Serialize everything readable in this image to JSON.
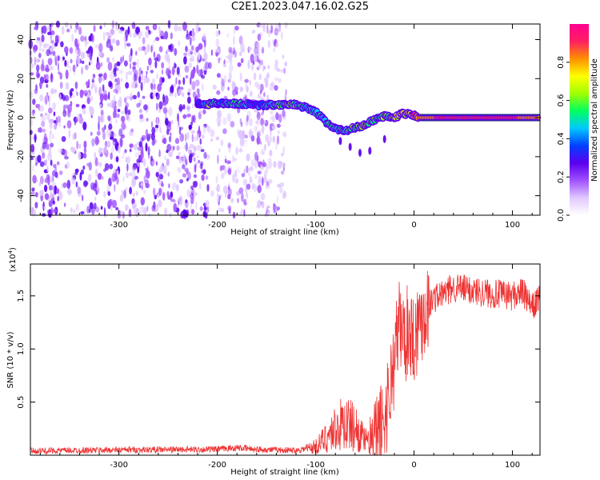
{
  "title": "C2E1.2023.047.16.02.G25",
  "chart_data": [
    {
      "type": "heatmap",
      "xlabel": "Height of straight line (km)",
      "ylabel": "Frequency (Hz)",
      "xlim": [
        -390,
        128
      ],
      "ylim": [
        -50,
        48
      ],
      "xticks": [
        -300,
        -200,
        -100,
        0,
        100
      ],
      "yticks": [
        -40,
        -20,
        0,
        20,
        40
      ],
      "colorbar": {
        "label": "Normalized spectral amplitude",
        "range": [
          0,
          1
        ],
        "ticks": [
          0.0,
          0.2,
          0.4,
          0.6,
          0.8
        ],
        "colors": [
          "#ffffff",
          "#e0c8ff",
          "#a050ff",
          "#5a00f0",
          "#0040ff",
          "#00c8ff",
          "#00ff60",
          "#a0ff00",
          "#ffff00",
          "#ff9000",
          "#ff2060",
          "#ff0090"
        ]
      },
      "noise_region_km": [
        -390,
        -130
      ],
      "ridge": [
        {
          "x": -220,
          "f": 7,
          "amp": 0.15
        },
        {
          "x": -210,
          "f": 7,
          "amp": 0.5
        },
        {
          "x": -195,
          "f": 7.5,
          "amp": 0.35
        },
        {
          "x": -175,
          "f": 7,
          "amp": 0.45
        },
        {
          "x": -160,
          "f": 6.5,
          "amp": 0.3
        },
        {
          "x": -145,
          "f": 6.5,
          "amp": 0.45
        },
        {
          "x": -128,
          "f": 7,
          "amp": 0.55
        },
        {
          "x": -115,
          "f": 6,
          "amp": 0.45
        },
        {
          "x": -100,
          "f": 3,
          "amp": 0.4
        },
        {
          "x": -88,
          "f": -3,
          "amp": 0.45
        },
        {
          "x": -78,
          "f": -6,
          "amp": 0.4
        },
        {
          "x": -70,
          "f": -7,
          "amp": 0.45
        },
        {
          "x": -60,
          "f": -5,
          "amp": 0.5
        },
        {
          "x": -52,
          "f": -4,
          "amp": 0.55
        },
        {
          "x": -44,
          "f": -2,
          "amp": 0.5
        },
        {
          "x": -36,
          "f": 0,
          "amp": 0.5
        },
        {
          "x": -28,
          "f": 1,
          "amp": 0.5
        },
        {
          "x": -20,
          "f": 0,
          "amp": 0.55
        },
        {
          "x": -12,
          "f": 2,
          "amp": 0.65
        },
        {
          "x": -4,
          "f": 2,
          "amp": 0.6
        },
        {
          "x": 5,
          "f": 0,
          "amp": 0.85
        },
        {
          "x": 40,
          "f": 0,
          "amp": 0.88
        },
        {
          "x": 80,
          "f": 0,
          "amp": 0.88
        },
        {
          "x": 128,
          "f": 0,
          "amp": 0.85
        }
      ]
    },
    {
      "type": "line",
      "xlabel": "Height of straight line (km)",
      "ylabel": "SNR (10 * v/v)",
      "scale_label": "(x10",
      "scale_exponent": "4",
      "scale_suffix": ")",
      "xlim": [
        -390,
        128
      ],
      "ylim": [
        0,
        18000
      ],
      "xticks": [
        -300,
        -200,
        -100,
        0,
        100
      ],
      "yticks": [
        5000,
        10000,
        15000
      ],
      "ytick_labels": [
        "0.5",
        "1.0",
        "1.5"
      ],
      "color": "#ee3333",
      "series": [
        {
          "x": [
            -390,
            -300,
            -200,
            -180,
            -160,
            -120,
            -100,
            -90,
            -80,
            -70,
            -60,
            -50,
            -40,
            -30,
            -25,
            -20,
            -15,
            -10,
            -5,
            0,
            5,
            10,
            20,
            30,
            40,
            60,
            80,
            100,
            110,
            120,
            128
          ],
          "values": [
            400,
            500,
            550,
            700,
            550,
            450,
            800,
            1600,
            2500,
            3100,
            2600,
            1400,
            900,
            3500,
            6000,
            9000,
            12500,
            11000,
            12000,
            11000,
            12500,
            13500,
            14800,
            15200,
            15800,
            15500,
            15200,
            15000,
            15400,
            13800,
            15000
          ]
        }
      ]
    }
  ]
}
